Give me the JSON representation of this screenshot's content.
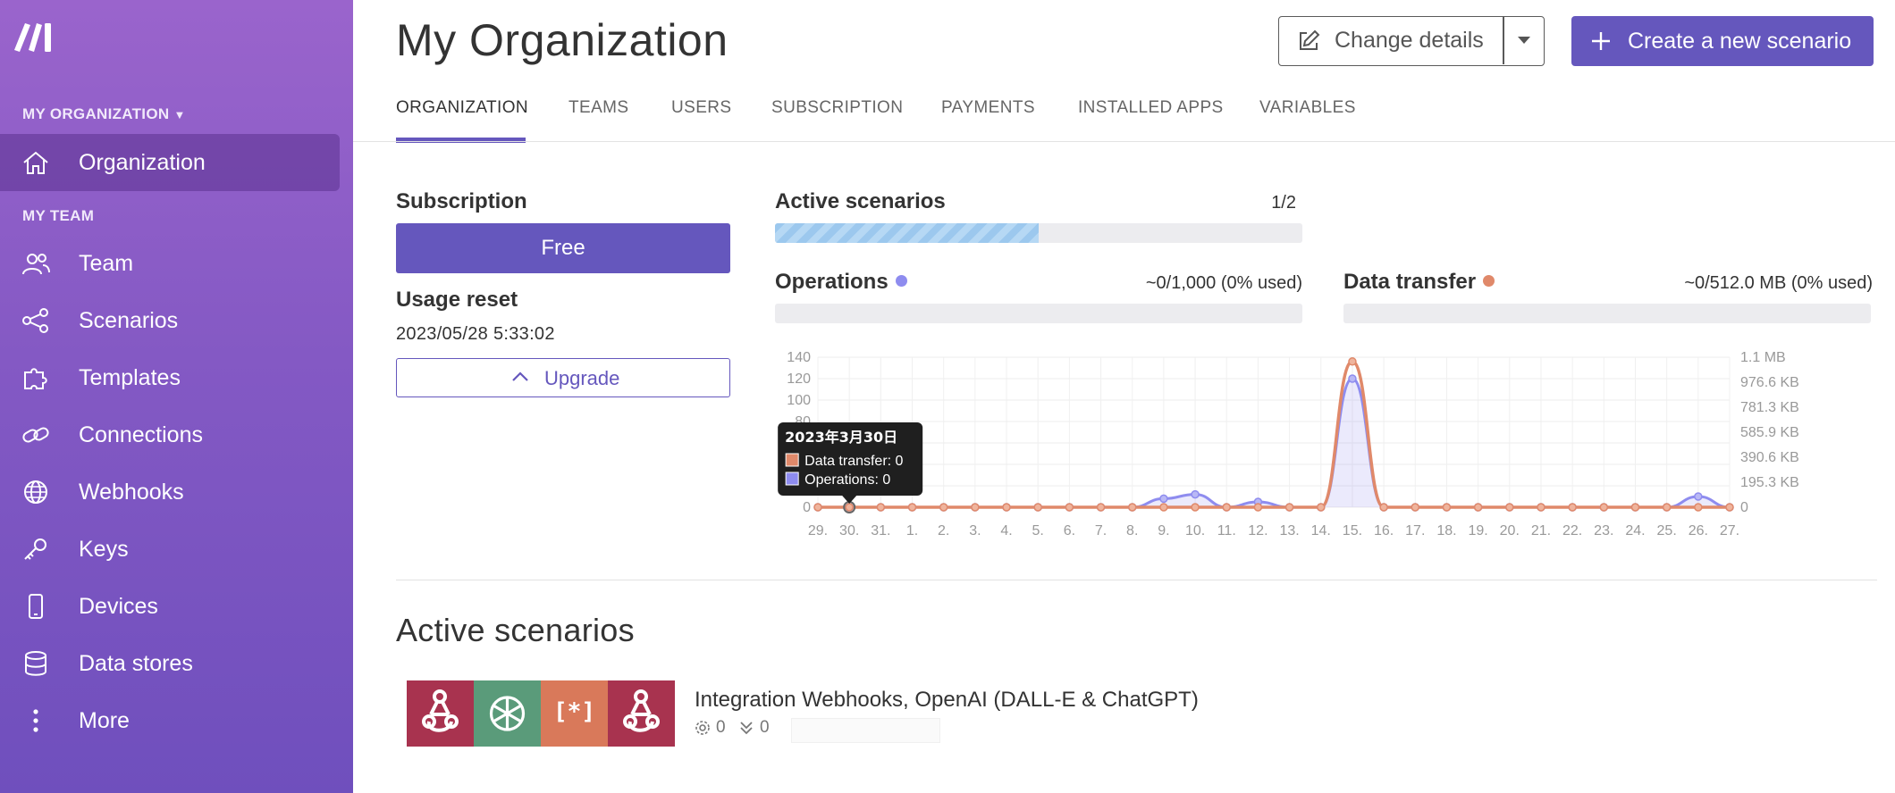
{
  "sidebar": {
    "org_section": "MY ORGANIZATION",
    "team_section": "MY TEAM",
    "items": [
      {
        "label": "Organization",
        "icon": "home-icon",
        "active": true
      },
      {
        "label": "Team",
        "icon": "team-icon"
      },
      {
        "label": "Scenarios",
        "icon": "share-icon"
      },
      {
        "label": "Templates",
        "icon": "puzzle-icon"
      },
      {
        "label": "Connections",
        "icon": "link-icon"
      },
      {
        "label": "Webhooks",
        "icon": "globe-icon"
      },
      {
        "label": "Keys",
        "icon": "key-icon"
      },
      {
        "label": "Devices",
        "icon": "phone-icon"
      },
      {
        "label": "Data stores",
        "icon": "database-icon"
      },
      {
        "label": "More",
        "icon": "more-vertical-icon"
      }
    ]
  },
  "header": {
    "title": "My Organization",
    "change_details": "Change details",
    "create_scenario": "Create a new scenario"
  },
  "tabs": [
    "ORGANIZATION",
    "TEAMS",
    "USERS",
    "SUBSCRIPTION",
    "PAYMENTS",
    "INSTALLED APPS",
    "VARIABLES"
  ],
  "subscription": {
    "label": "Subscription",
    "plan": "Free",
    "usage_reset_label": "Usage reset",
    "usage_reset_date": "2023/05/28 5:33:02",
    "upgrade": "Upgrade"
  },
  "active_scenarios_meter": {
    "label": "Active scenarios",
    "ratio": "1/2",
    "fraction": 0.5
  },
  "operations": {
    "label": "Operations",
    "usage": "~0/1,000 (0% used)",
    "fraction": 0,
    "color": "#8e8cef"
  },
  "data_transfer": {
    "label": "Data transfer",
    "usage": "~0/512.0 MB (0% used)",
    "fraction": 0,
    "color": "#e0896a"
  },
  "chart_data": {
    "type": "line",
    "x": [
      "29.",
      "30.",
      "31.",
      "1.",
      "2.",
      "3.",
      "4.",
      "5.",
      "6.",
      "7.",
      "8.",
      "9.",
      "10.",
      "11.",
      "12.",
      "13.",
      "14.",
      "15.",
      "16.",
      "17.",
      "18.",
      "19.",
      "20.",
      "21.",
      "22.",
      "23.",
      "24.",
      "25.",
      "26.",
      "27."
    ],
    "y_left_ticks": [
      "0",
      "20",
      "40",
      "60",
      "80",
      "100",
      "120",
      "140"
    ],
    "y_left_range": [
      0,
      140
    ],
    "y_right_ticks": [
      "0",
      "195.3 KB",
      "390.6 KB",
      "585.9 KB",
      "781.3 KB",
      "976.6 KB",
      "1.1 MB"
    ],
    "series": [
      {
        "name": "Operations",
        "color": "#8e8cef",
        "axis": "left",
        "values": [
          0,
          0,
          0,
          0,
          0,
          0,
          0,
          0,
          0,
          0,
          0,
          8,
          12,
          0,
          5,
          0,
          0,
          120,
          0,
          0,
          0,
          0,
          0,
          0,
          0,
          0,
          0,
          0,
          10,
          0
        ]
      },
      {
        "name": "Data transfer",
        "color": "#e0896a",
        "axis": "left",
        "values": [
          0,
          0,
          0,
          0,
          0,
          0,
          0,
          0,
          0,
          0,
          0,
          0,
          0,
          0,
          0,
          0,
          0,
          136,
          0,
          0,
          0,
          0,
          0,
          0,
          0,
          0,
          0,
          0,
          0,
          0
        ]
      }
    ],
    "grid": true,
    "tooltip": {
      "date": "2023年3月30日",
      "data_transfer": "Data transfer: 0",
      "operations": "Operations: 0",
      "index": 1
    }
  },
  "active_scenarios": {
    "title": "Active scenarios",
    "items": [
      {
        "name": "Integration Webhooks, OpenAI (DALL-E & ChatGPT)",
        "ops": "0",
        "transfer": "0",
        "apps": [
          {
            "icon": "webhook-icon",
            "color": "#a8334f"
          },
          {
            "icon": "openai-icon",
            "color": "#5a9b7a"
          },
          {
            "icon": "json-icon",
            "color": "#d9795a",
            "text": "[*]"
          },
          {
            "icon": "webhook-icon",
            "color": "#a8334f"
          }
        ]
      }
    ]
  }
}
